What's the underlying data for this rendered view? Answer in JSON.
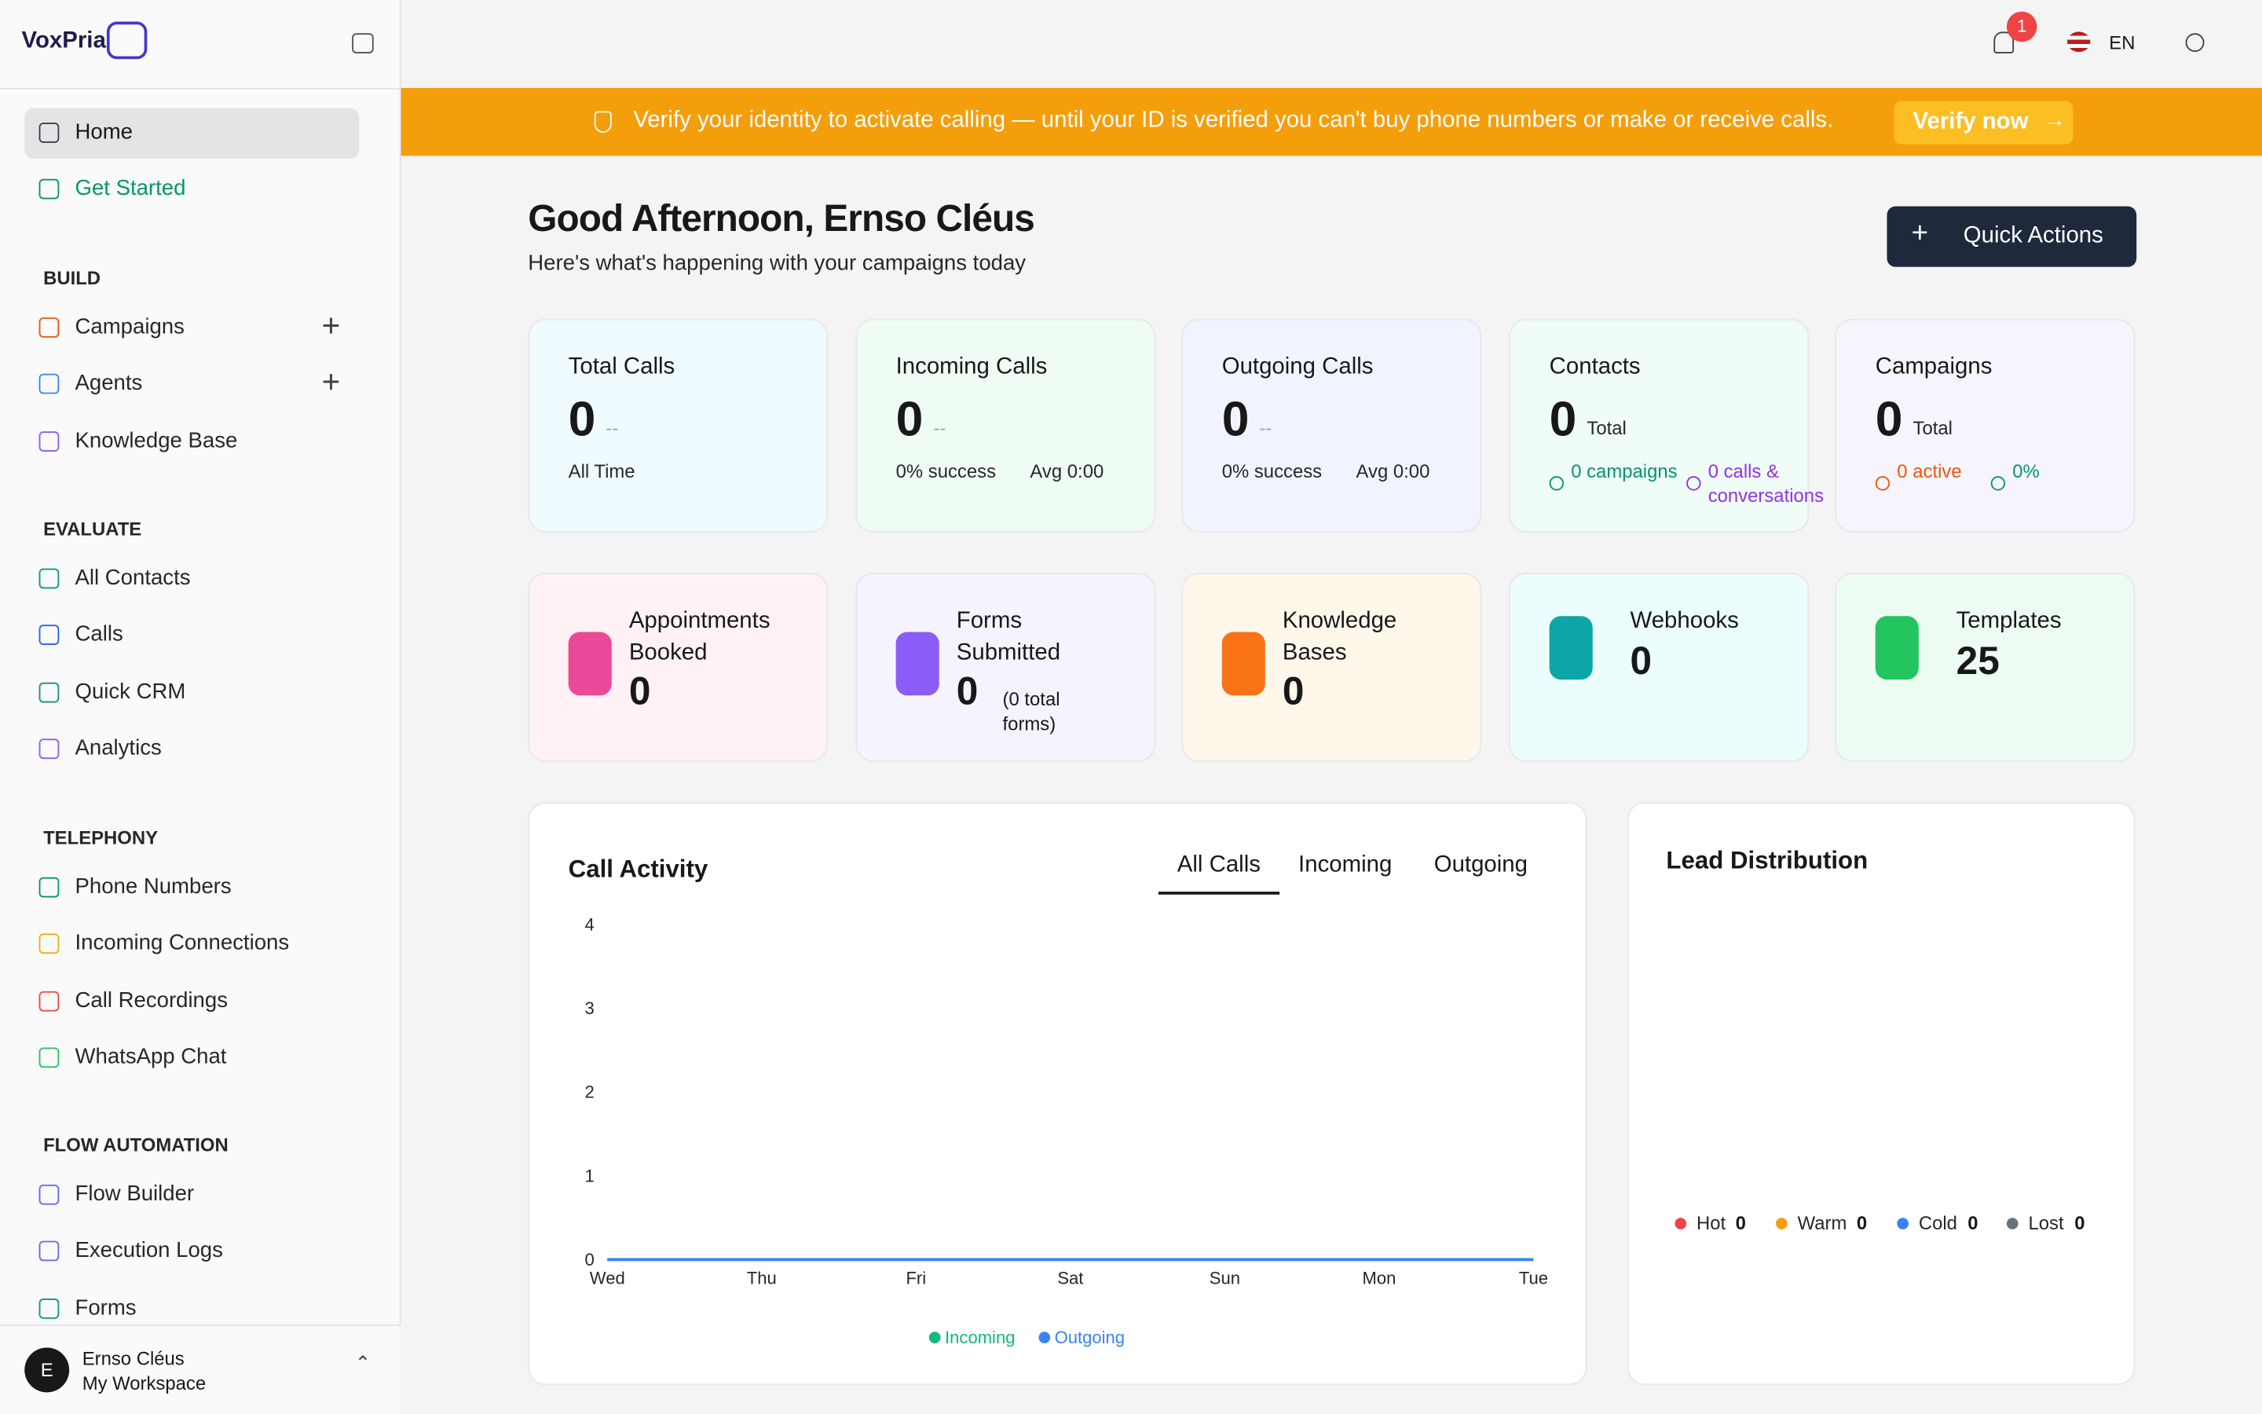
{
  "brand": "VoxPria",
  "nav": {
    "home": "Home",
    "get_started": "Get Started",
    "sections": [
      {
        "title": "BUILD",
        "items": [
          "Campaigns",
          "Agents",
          "Knowledge Base"
        ]
      },
      {
        "title": "EVALUATE",
        "items": [
          "All Contacts",
          "Calls",
          "Quick CRM",
          "Analytics"
        ]
      },
      {
        "title": "TELEPHONY",
        "items": [
          "Phone Numbers",
          "Incoming Connections",
          "Call Recordings",
          "WhatsApp Chat"
        ]
      },
      {
        "title": "FLOW AUTOMATION",
        "items": [
          "Flow Builder",
          "Execution Logs",
          "Forms"
        ]
      }
    ]
  },
  "user": {
    "initial": "E",
    "name": "Ernso Cléus",
    "workspace": "My Workspace"
  },
  "topbar": {
    "notifications": 1,
    "language": "EN"
  },
  "banner": {
    "text": "Verify your identity to activate calling — until your ID is verified you can't buy phone numbers or make or receive calls.",
    "action": "Verify now"
  },
  "greeting": {
    "title": "Good Afternoon, Ernso Cléus",
    "subtitle": "Here's what's happening with your campaigns today",
    "action": "Quick Actions"
  },
  "stats": [
    {
      "label": "Total Calls",
      "value": 0,
      "suffix": "--",
      "notes": [
        "All Time"
      ]
    },
    {
      "label": "Incoming Calls",
      "value": 0,
      "suffix": "--",
      "notes": [
        "0% success",
        "Avg 0:00"
      ]
    },
    {
      "label": "Outgoing Calls",
      "value": 0,
      "suffix": "--",
      "notes": [
        "0% success",
        "Avg 0:00"
      ]
    },
    {
      "label": "Contacts",
      "value": 0,
      "suffix": "Total",
      "notes": [
        "0 campaigns",
        "0 calls & conversations"
      ]
    },
    {
      "label": "Campaigns",
      "value": 0,
      "suffix": "Total",
      "notes": [
        "0 active",
        "0%"
      ]
    }
  ],
  "tiles": [
    {
      "label": "Appointments Booked",
      "value": 0
    },
    {
      "label": "Forms Submitted",
      "value": 0,
      "note": "(0 total forms)"
    },
    {
      "label": "Knowledge Bases",
      "value": 0
    },
    {
      "label": "Webhooks",
      "value": 0
    },
    {
      "label": "Templates",
      "value": 25
    }
  ],
  "call_activity": {
    "title": "Call Activity",
    "tabs": [
      "All Calls",
      "Incoming",
      "Outgoing"
    ],
    "categories": [
      "Wed",
      "Thu",
      "Fri",
      "Sat",
      "Sun",
      "Mon",
      "Tue"
    ],
    "ylim": [
      0,
      4
    ],
    "yticks": [
      0,
      1,
      2,
      3,
      4
    ],
    "series": [
      {
        "name": "Incoming",
        "color": "#10b981",
        "values": [
          0,
          0,
          0,
          0,
          0,
          0,
          0
        ]
      },
      {
        "name": "Outgoing",
        "color": "#3b82f6",
        "values": [
          0,
          0,
          0,
          0,
          0,
          0,
          0
        ]
      }
    ]
  },
  "lead_distribution": {
    "title": "Lead Distribution",
    "segments": [
      {
        "name": "Hot",
        "value": 0,
        "color": "#ef4444"
      },
      {
        "name": "Warm",
        "value": 0,
        "color": "#f59e0b"
      },
      {
        "name": "Cold",
        "value": 0,
        "color": "#3b82f6"
      },
      {
        "name": "Lost",
        "value": 0,
        "color": "#6b7280"
      }
    ]
  }
}
